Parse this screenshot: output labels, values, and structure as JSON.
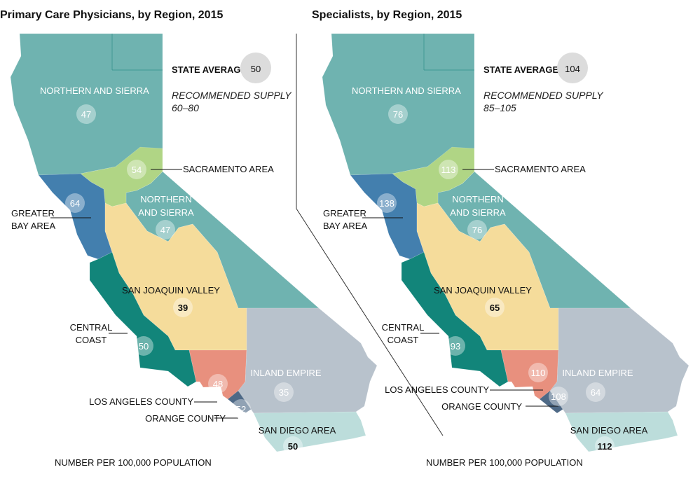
{
  "colors": {
    "northern_sierra": "#6fb3b0",
    "sacramento": "#b0d585",
    "bay_area": "#437fae",
    "san_joaquin": "#f5dc9b",
    "central_coast": "#12857a",
    "los_angeles": "#e8907e",
    "orange": "#4e6986",
    "inland_empire": "#b8c2cc",
    "san_diego": "#bcdddb",
    "state_average_circle": "#dcdcdc"
  },
  "maps": [
    {
      "title": "Primary Care Physicians, by Region, 2015",
      "state_average_label": "STATE AVERAGE",
      "state_average": "50",
      "recommended_label": "RECOMMENDED SUPPLY",
      "recommended_range": "60–80",
      "footnote": "NUMBER PER 100,000 POPULATION",
      "regions": {
        "northern_sierra_north": {
          "label": "NORTHERN AND SIERRA",
          "value": "47"
        },
        "northern_sierra_mid": {
          "label1": "NORTHERN",
          "label2": "AND  SIERRA",
          "value": "47"
        },
        "sacramento": {
          "label": "SACRAMENTO AREA",
          "value": "54"
        },
        "bay_area": {
          "label1": "GREATER",
          "label2": "BAY AREA",
          "value": "64"
        },
        "san_joaquin": {
          "label": "SAN JOAQUIN VALLEY",
          "value": "39"
        },
        "central_coast": {
          "label1": "CENTRAL",
          "label2": "COAST",
          "value": "50"
        },
        "los_angeles": {
          "label": "LOS ANGELES COUNTY",
          "value": "48"
        },
        "orange": {
          "label": "ORANGE COUNTY",
          "value": "52"
        },
        "inland_empire": {
          "label": "INLAND EMPIRE",
          "value": "35"
        },
        "san_diego": {
          "label": "SAN DIEGO AREA",
          "value": "50"
        }
      }
    },
    {
      "title": "Specialists, by Region, 2015",
      "state_average_label": "STATE AVERAGE",
      "state_average": "104",
      "recommended_label": "RECOMMENDED SUPPLY",
      "recommended_range": "85–105",
      "footnote": "NUMBER PER 100,000 POPULATION",
      "regions": {
        "northern_sierra_north": {
          "label": "NORTHERN AND SIERRA",
          "value": "76"
        },
        "northern_sierra_mid": {
          "label1": "NORTHERN",
          "label2": "AND  SIERRA",
          "value": "76"
        },
        "sacramento": {
          "label": "SACRAMENTO AREA",
          "value": "113"
        },
        "bay_area": {
          "label1": "GREATER",
          "label2": "BAY AREA",
          "value": "138"
        },
        "san_joaquin": {
          "label": "SAN JOAQUIN VALLEY",
          "value": "65"
        },
        "central_coast": {
          "label1": "CENTRAL",
          "label2": "COAST",
          "value": "93"
        },
        "los_angeles": {
          "label": "LOS ANGELES COUNTY",
          "value": "110"
        },
        "orange": {
          "label": "ORANGE COUNTY",
          "value": "108"
        },
        "inland_empire": {
          "label": "INLAND EMPIRE",
          "value": "64"
        },
        "san_diego": {
          "label": "SAN DIEGO AREA",
          "value": "112"
        }
      }
    }
  ]
}
